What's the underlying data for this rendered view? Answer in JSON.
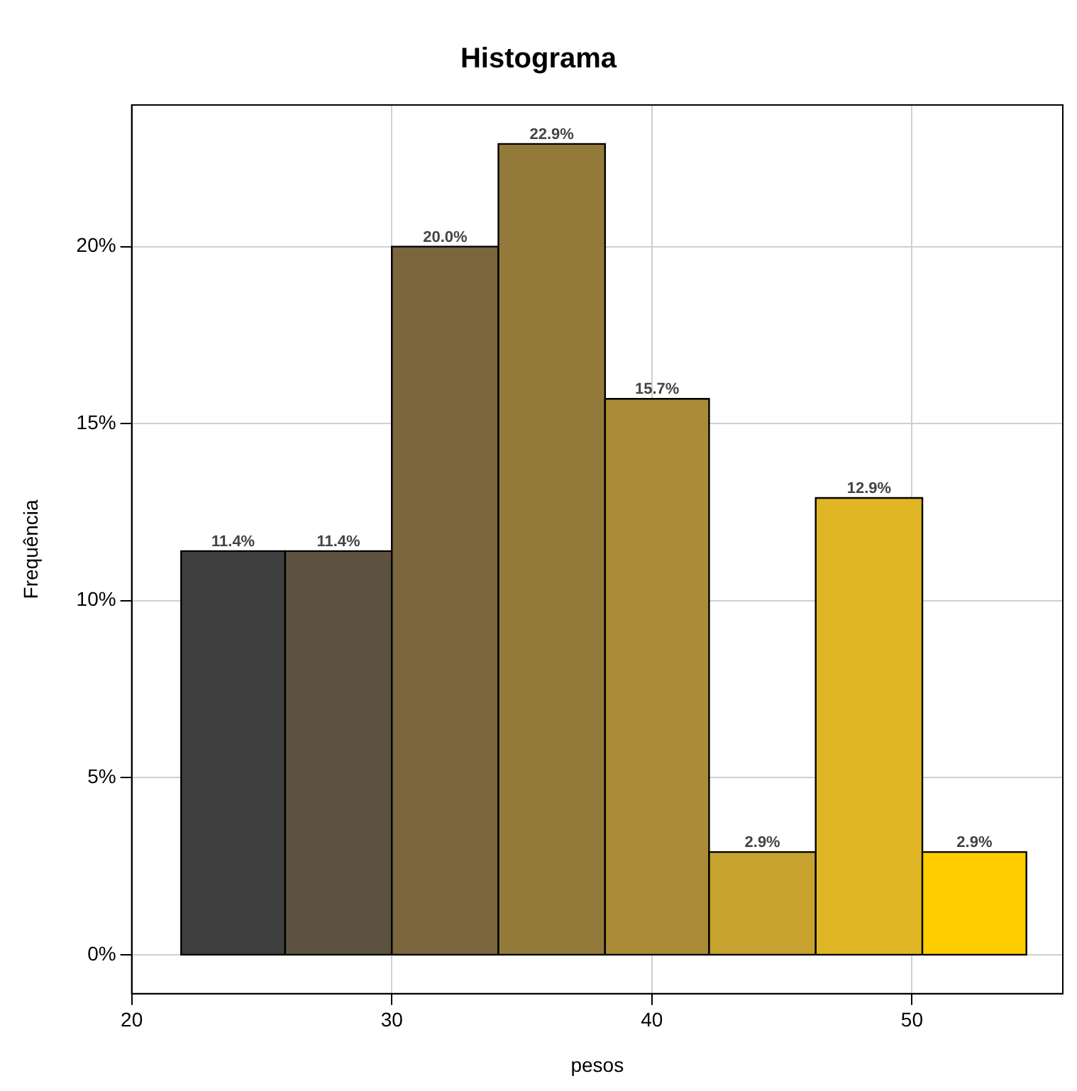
{
  "chart_data": {
    "type": "histogram",
    "title": "Histograma",
    "xlabel": "pesos",
    "ylabel": "Frequência",
    "bins": [
      21.9,
      25.9,
      30.0,
      34.1,
      38.2,
      42.2,
      46.3,
      50.4,
      54.4
    ],
    "values": [
      11.4,
      11.4,
      20.0,
      22.9,
      15.7,
      2.9,
      12.9,
      2.9
    ],
    "colors": [
      "#3f3f3f",
      "#5c523f",
      "#7a653d",
      "#937a3a",
      "#ab8c36",
      "#c7a22f",
      "#e1b625",
      "#ffcc00"
    ],
    "value_labels": [
      "11.4%",
      "11.4%",
      "20.0%",
      "22.9%",
      "15.7%",
      "2.9%",
      "12.9%",
      "2.9%"
    ],
    "xlim": [
      20,
      55.8
    ],
    "xticks": [
      20,
      30,
      40,
      50
    ],
    "ylim": [
      -1.1,
      24
    ],
    "yticks": [
      {
        "value": 0,
        "label": "0%"
      },
      {
        "value": 5,
        "label": "5%"
      },
      {
        "value": 10,
        "label": "10%"
      },
      {
        "value": 15,
        "label": "15%"
      },
      {
        "value": 20,
        "label": "20%"
      }
    ],
    "grid": true,
    "legend": false
  }
}
